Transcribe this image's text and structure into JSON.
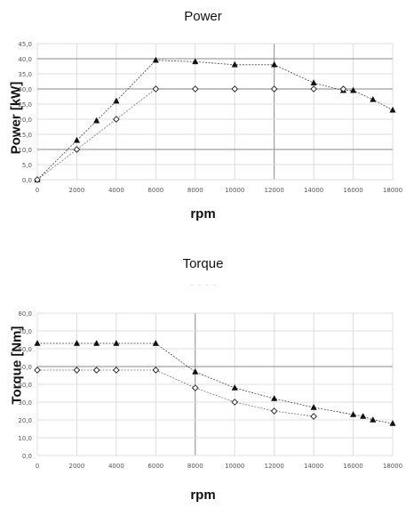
{
  "chart_data": [
    {
      "type": "line",
      "title": "Power",
      "xlabel": "rpm",
      "ylabel": "Power [kW]",
      "x_tick_labels": [
        "0",
        "2000",
        "4000",
        "6000",
        "8000",
        "10000",
        "12000",
        "14000",
        "16000",
        "18000"
      ],
      "y_tick_labels": [
        "0,0",
        "5,0",
        "10,0",
        "15,0",
        "20,0",
        "25,0",
        "30,0",
        "35,0",
        "40,0",
        "45,0"
      ],
      "xlim": [
        0,
        18000
      ],
      "ylim": [
        0,
        45
      ],
      "series": [
        {
          "marker": "triangle",
          "x": [
            0,
            2000,
            3000,
            4000,
            6000,
            8000,
            10000,
            12000,
            14000,
            15500,
            16000,
            17000,
            18000
          ],
          "y": [
            0,
            13,
            19.5,
            26,
            39.5,
            39,
            38,
            38,
            32,
            29.5,
            29.5,
            26.5,
            23
          ]
        },
        {
          "marker": "diamond",
          "x": [
            0,
            2000,
            4000,
            6000,
            8000,
            10000,
            12000,
            14000,
            15500
          ],
          "y": [
            0,
            10,
            20,
            30,
            30,
            30,
            30,
            30,
            30
          ]
        }
      ]
    },
    {
      "type": "line",
      "title": "Torque",
      "xlabel": "rpm",
      "ylabel": "Torque [Nm]",
      "x_tick_labels": [
        "0",
        "2000",
        "4000",
        "6000",
        "8000",
        "10000",
        "12000",
        "14000",
        "16000",
        "18000"
      ],
      "y_tick_labels": [
        "0,0",
        "10,0",
        "20,0",
        "30,0",
        "40,0",
        "50,0",
        "60,0",
        "70,0",
        "80,0"
      ],
      "xlim": [
        0,
        18000
      ],
      "ylim": [
        0,
        80
      ],
      "series": [
        {
          "marker": "triangle",
          "x": [
            0,
            2000,
            3000,
            4000,
            6000,
            8000,
            10000,
            12000,
            14000,
            16000,
            16500,
            17000,
            18000
          ],
          "y": [
            63,
            63,
            63,
            63,
            63,
            47,
            38,
            32,
            27,
            23,
            22,
            20,
            18
          ]
        },
        {
          "marker": "diamond",
          "x": [
            0,
            2000,
            3000,
            4000,
            6000,
            8000,
            10000,
            12000,
            14000
          ],
          "y": [
            48,
            48,
            48,
            48,
            48,
            38,
            30,
            25,
            22
          ]
        }
      ]
    }
  ]
}
